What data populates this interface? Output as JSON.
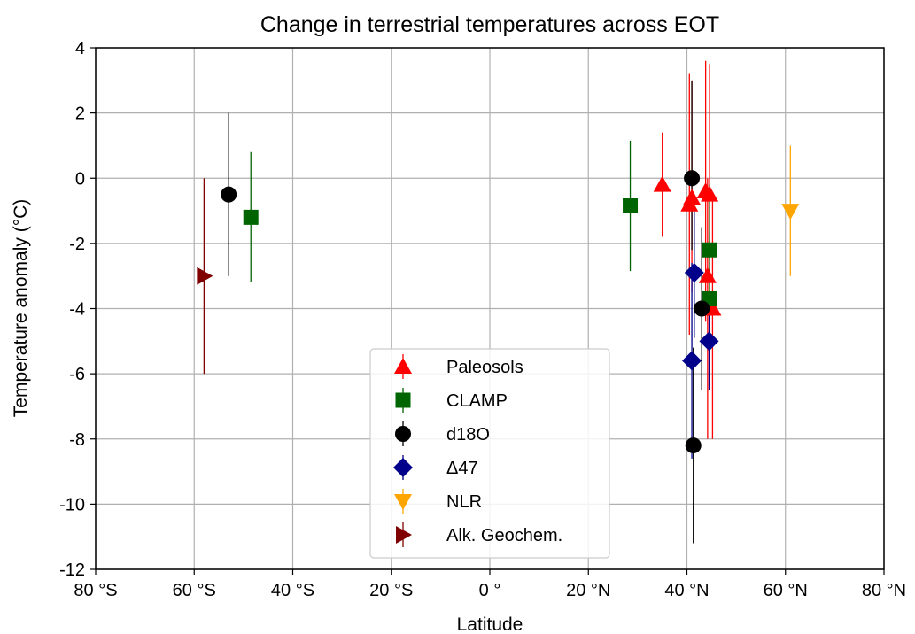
{
  "chart_data": {
    "type": "scatter",
    "title": "Change in terrestrial temperatures across EOT",
    "xlabel": "Latitude",
    "ylabel": "Temperature anomaly (°C)",
    "xlim": [
      -80,
      80
    ],
    "ylim": [
      -12,
      4
    ],
    "grid": true,
    "legend_position": "bottom-center",
    "x_ticks": [
      {
        "value": -80,
        "label": "80 °S"
      },
      {
        "value": -60,
        "label": "60 °S"
      },
      {
        "value": -40,
        "label": "40 °S"
      },
      {
        "value": -20,
        "label": "20 °S"
      },
      {
        "value": 0,
        "label": "0 °"
      },
      {
        "value": 20,
        "label": "20 °N"
      },
      {
        "value": 40,
        "label": "40 °N"
      },
      {
        "value": 60,
        "label": "60 °N"
      },
      {
        "value": 80,
        "label": "80 °N"
      }
    ],
    "y_ticks": [
      {
        "value": 4,
        "label": "4"
      },
      {
        "value": 2,
        "label": "2"
      },
      {
        "value": 0,
        "label": "0"
      },
      {
        "value": -2,
        "label": "-2"
      },
      {
        "value": -4,
        "label": "-4"
      },
      {
        "value": -6,
        "label": "-6"
      },
      {
        "value": -8,
        "label": "-8"
      },
      {
        "value": -10,
        "label": "-10"
      },
      {
        "value": -12,
        "label": "-12"
      }
    ],
    "series": [
      {
        "name": "Paleosols",
        "marker": "triangle-up",
        "color": "#ff0000",
        "points": [
          {
            "x": 35.0,
            "y": -0.2,
            "ylow": -1.8,
            "yhigh": 1.4
          },
          {
            "x": 40.5,
            "y": -0.8,
            "ylow": -4.8,
            "yhigh": 3.2
          },
          {
            "x": 41.0,
            "y": -0.6,
            "ylow": -3.5,
            "yhigh": 3.0
          },
          {
            "x": 43.8,
            "y": -0.4,
            "ylow": -4.4,
            "yhigh": 3.6
          },
          {
            "x": 44.6,
            "y": -0.5,
            "ylow": -3.5,
            "yhigh": 3.5
          },
          {
            "x": 44.2,
            "y": -3.0,
            "ylow": -8.0,
            "yhigh": 0.0
          },
          {
            "x": 45.2,
            "y": -4.0,
            "ylow": -8.0,
            "yhigh": -0.5
          }
        ]
      },
      {
        "name": "CLAMP",
        "marker": "square",
        "color": "#006400",
        "points": [
          {
            "x": -48.5,
            "y": -1.2,
            "ylow": -3.2,
            "yhigh": 0.8
          },
          {
            "x": 28.5,
            "y": -0.85,
            "ylow": -2.85,
            "yhigh": 1.15
          },
          {
            "x": 44.6,
            "y": -2.2,
            "ylow": -4.2,
            "yhigh": -0.2
          },
          {
            "x": 44.6,
            "y": -3.7,
            "ylow": -5.7,
            "yhigh": -1.7
          }
        ]
      },
      {
        "name": "d18O",
        "marker": "circle",
        "color": "#000000",
        "points": [
          {
            "x": -53.0,
            "y": -0.5,
            "ylow": -3.0,
            "yhigh": 2.0
          },
          {
            "x": 41.0,
            "y": 0.0,
            "ylow": -2.2,
            "yhigh": 3.0
          },
          {
            "x": 43.0,
            "y": -4.0,
            "ylow": -6.5,
            "yhigh": -1.5
          },
          {
            "x": 41.3,
            "y": -8.2,
            "ylow": -11.2,
            "yhigh": -5.2
          }
        ]
      },
      {
        "name": "Δ47",
        "marker": "diamond",
        "color": "#00008b",
        "points": [
          {
            "x": 41.5,
            "y": -2.9,
            "ylow": -4.9,
            "yhigh": -0.9
          },
          {
            "x": 41.0,
            "y": -5.6,
            "ylow": -8.6,
            "yhigh": -2.6
          },
          {
            "x": 44.5,
            "y": -5.0,
            "ylow": -6.5,
            "yhigh": -3.5
          }
        ]
      },
      {
        "name": "NLR",
        "marker": "triangle-down",
        "color": "#ffa500",
        "points": [
          {
            "x": 61.0,
            "y": -1.0,
            "ylow": -3.0,
            "yhigh": 1.0
          }
        ]
      },
      {
        "name": "Alk. Geochem.",
        "marker": "triangle-right",
        "color": "#800000",
        "points": [
          {
            "x": -58.0,
            "y": -3.0,
            "ylow": -6.0,
            "yhigh": 0.0
          }
        ]
      }
    ]
  }
}
